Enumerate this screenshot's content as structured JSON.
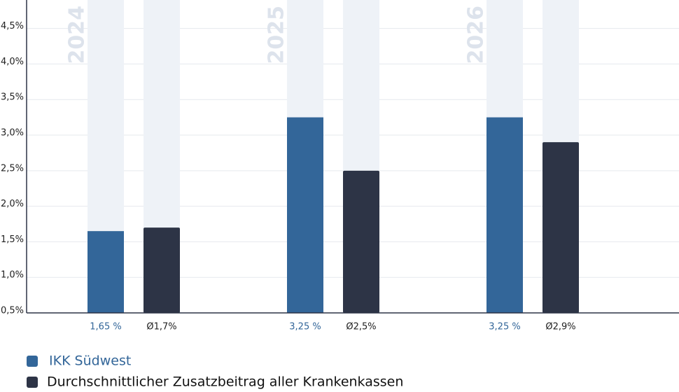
{
  "chart_data": {
    "type": "bar",
    "categories": [
      "2024",
      "2025",
      "2026"
    ],
    "series": [
      {
        "name": "IKK Südwest",
        "color": "#336699",
        "values": [
          1.65,
          3.25,
          3.25
        ],
        "value_labels": [
          "1,65 %",
          "3,25 %",
          "3,25 %"
        ]
      },
      {
        "name": "Durchschnittlicher Zusatzbeitrag aller Krankenkassen",
        "color": "#2d3446",
        "values": [
          1.7,
          2.5,
          2.9
        ],
        "value_labels": [
          "Ø1,7%",
          "Ø2,5%",
          "Ø2,9%"
        ]
      }
    ],
    "ylim": [
      0.5,
      4.9
    ],
    "yticks": [
      {
        "value": 0.5,
        "label": "0,5%"
      },
      {
        "value": 1.0,
        "label": "1,0%"
      },
      {
        "value": 1.5,
        "label": "1,5%"
      },
      {
        "value": 2.0,
        "label": "2,0%"
      },
      {
        "value": 2.5,
        "label": "2,5%"
      },
      {
        "value": 3.0,
        "label": "3,0%"
      },
      {
        "value": 3.5,
        "label": "3,5%"
      },
      {
        "value": 4.0,
        "label": "4,0%"
      },
      {
        "value": 4.5,
        "label": "4,5%"
      }
    ],
    "grid": true
  }
}
